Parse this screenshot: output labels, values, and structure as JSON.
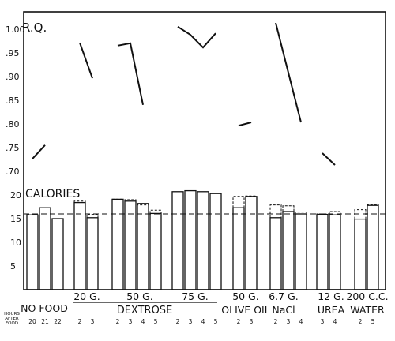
{
  "chart_data": [
    {
      "type": "line",
      "ylabel": "R.Q.",
      "ylim": [
        0.7,
        1.0
      ],
      "y_ticks": [
        "1.00",
        ".95",
        ".90",
        ".85",
        ".80",
        ".75",
        ".70"
      ],
      "series": [
        {
          "group": "NO FOOD",
          "hours": [
            20,
            21
          ],
          "values": [
            0.723,
            0.752
          ]
        },
        {
          "group": "20 G.",
          "hours": [
            2,
            3
          ],
          "values": [
            0.968,
            0.893
          ]
        },
        {
          "group": "50 G.",
          "hours": [
            2,
            3,
            4
          ],
          "values": [
            0.962,
            0.967,
            0.837
          ]
        },
        {
          "group": "75 G.",
          "hours": [
            2,
            3,
            4,
            5
          ],
          "values": [
            1.002,
            0.985,
            0.958,
            0.988
          ]
        },
        {
          "group": "50 G. OLIVE OIL",
          "hours": [
            2,
            3
          ],
          "values": [
            0.793,
            0.8
          ]
        },
        {
          "group": "6.7 G. NaCl",
          "hours": [
            2,
            3,
            4
          ],
          "values": [
            1.01,
            0.905,
            0.8
          ]
        },
        {
          "group": "12 G. UREA",
          "hours": [
            3,
            4
          ],
          "values": [
            0.735,
            0.71
          ]
        }
      ]
    },
    {
      "type": "bar",
      "ylabel": "CALORIES",
      "ylim": [
        0,
        20
      ],
      "y_ticks": [
        "20",
        "15",
        "10",
        "5"
      ],
      "reference_line": 16,
      "groups": [
        {
          "label": "NO FOOD",
          "hours": [
            "20",
            "21",
            "22"
          ],
          "values": [
            15.8,
            17.3,
            15.0
          ]
        },
        {
          "label": "20 G.",
          "hours": [
            "2",
            "3"
          ],
          "values": [
            18.4,
            15.2
          ],
          "prior": [
            18.7,
            15.9
          ]
        },
        {
          "label": "50 G.",
          "hours": [
            "2",
            "3",
            "4",
            "5"
          ],
          "values": [
            19.1,
            18.7,
            18.2,
            16.1
          ],
          "prior": [
            19.1,
            19.0,
            17.9,
            16.8
          ]
        },
        {
          "label": "75 G.",
          "hours": [
            "2",
            "3",
            "4",
            "5"
          ],
          "values": [
            20.7,
            20.9,
            20.7,
            20.3
          ]
        },
        {
          "label": "50 G. OLIVE OIL",
          "hours": [
            "2",
            "3"
          ],
          "values": [
            17.3,
            19.7
          ],
          "prior": [
            19.7,
            19.8
          ]
        },
        {
          "label": "6.7 G. NaCl",
          "hours": [
            "2",
            "3",
            "4"
          ],
          "values": [
            15.2,
            16.5,
            16.0
          ],
          "prior": [
            17.9,
            17.7,
            16.4
          ]
        },
        {
          "label": "12 G. UREA",
          "hours": [
            "3",
            "4"
          ],
          "values": [
            15.9,
            15.8
          ],
          "prior": [
            16.0,
            16.5
          ]
        },
        {
          "label": "200 C.C. WATER",
          "hours": [
            "2",
            "5"
          ],
          "values": [
            14.9,
            17.8
          ],
          "prior": [
            16.9,
            18.0
          ]
        }
      ]
    }
  ],
  "dextrose_label": "DEXTROSE",
  "hours_caption": [
    "HOURS",
    "AFTER",
    "FOOD"
  ],
  "group_labels": [
    {
      "top": "NO FOOD",
      "bottom": ""
    },
    {
      "top": "20 G.",
      "bottom": ""
    },
    {
      "top": "50 G.",
      "bottom": ""
    },
    {
      "top": "75 G.",
      "bottom": ""
    },
    {
      "top": "50 G.",
      "bottom": "OLIVE OIL"
    },
    {
      "top": "6.7 G.",
      "bottom": "NaCl"
    },
    {
      "top": "12 G.",
      "bottom": "UREA"
    },
    {
      "top": "200 C.C.",
      "bottom": "WATER"
    }
  ]
}
